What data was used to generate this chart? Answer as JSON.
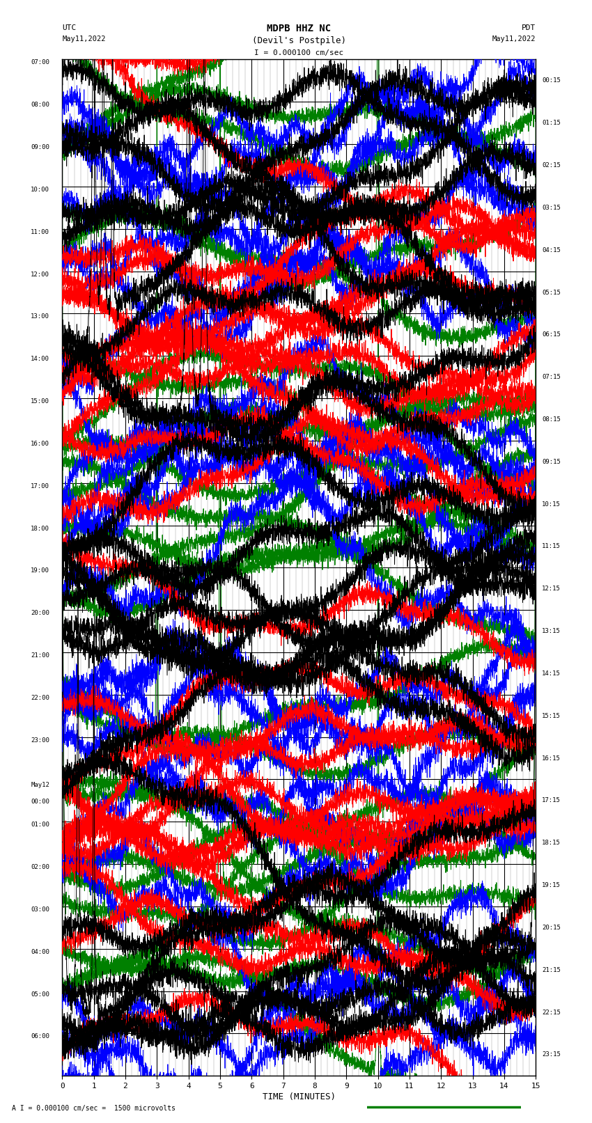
{
  "title_line1": "MDPB HHZ NC",
  "title_line2": "(Devil's Postpile)",
  "scale_label": "I = 0.000100 cm/sec",
  "utc_label": "UTC",
  "utc_date": "May11,2022",
  "pdt_label": "PDT",
  "pdt_date": "May11,2022",
  "bottom_label": "A I = 0.000100 cm/sec =  1500 microvolts",
  "xlabel": "TIME (MINUTES)",
  "xlim": [
    0,
    15
  ],
  "xticks": [
    0,
    1,
    2,
    3,
    4,
    5,
    6,
    7,
    8,
    9,
    10,
    11,
    12,
    13,
    14,
    15
  ],
  "left_times": [
    "07:00",
    "08:00",
    "09:00",
    "10:00",
    "11:00",
    "12:00",
    "13:00",
    "14:00",
    "15:00",
    "16:00",
    "17:00",
    "18:00",
    "19:00",
    "20:00",
    "21:00",
    "22:00",
    "23:00",
    "May12\n00:00",
    "01:00",
    "02:00",
    "03:00",
    "04:00",
    "05:00",
    "06:00"
  ],
  "right_times": [
    "00:15",
    "01:15",
    "02:15",
    "03:15",
    "04:15",
    "05:15",
    "06:15",
    "07:15",
    "08:15",
    "09:15",
    "10:15",
    "11:15",
    "12:15",
    "13:15",
    "14:15",
    "15:15",
    "16:15",
    "17:15",
    "18:15",
    "19:15",
    "20:15",
    "21:15",
    "22:15",
    "23:15"
  ],
  "bg_color": "#ffffff",
  "grid_major_color": "#000000",
  "grid_minor_color": "#888888",
  "trace_colors": [
    "black",
    "red",
    "blue",
    "green"
  ],
  "n_rows": 24,
  "figsize": [
    8.5,
    16.13
  ],
  "dpi": 100
}
